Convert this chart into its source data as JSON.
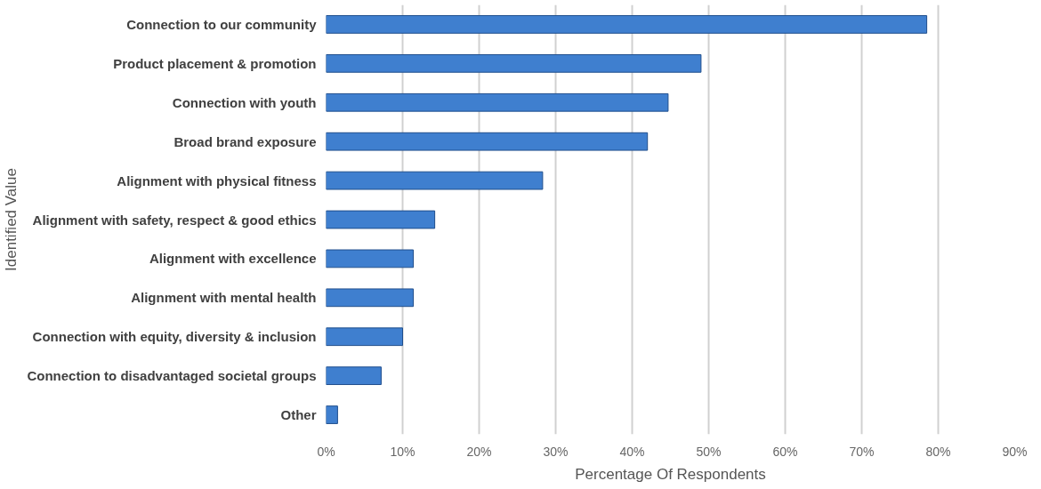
{
  "chart_data": {
    "type": "bar",
    "orientation": "horizontal",
    "xlabel": "Percentage Of Respondents",
    "ylabel": "Identified Value",
    "categories": [
      "Connection to our community",
      "Product placement & promotion",
      "Connection with youth",
      "Broad brand exposure",
      "Alignment with physical fitness",
      "Alignment with safety, respect & good ethics",
      "Alignment with excellence",
      "Alignment with mental health",
      "Connection with equity, diversity & inclusion",
      "Connection to disadvantaged societal groups",
      "Other"
    ],
    "values": [
      78.5,
      49,
      44.7,
      42,
      28.3,
      14.2,
      11.4,
      11.4,
      10,
      7.2,
      1.5
    ],
    "color": "#3f7fcf",
    "xlim": [
      0,
      90
    ],
    "xticks": [
      {
        "value": 0,
        "label": "0%"
      },
      {
        "value": 10,
        "label": "10%"
      },
      {
        "value": 20,
        "label": "20%"
      },
      {
        "value": 30,
        "label": "30%"
      },
      {
        "value": 40,
        "label": "40%"
      },
      {
        "value": 50,
        "label": "50%"
      },
      {
        "value": 60,
        "label": "60%"
      },
      {
        "value": 70,
        "label": "70%"
      },
      {
        "value": 80,
        "label": "80%"
      },
      {
        "value": 90,
        "label": "90%"
      }
    ],
    "grid": "x"
  }
}
